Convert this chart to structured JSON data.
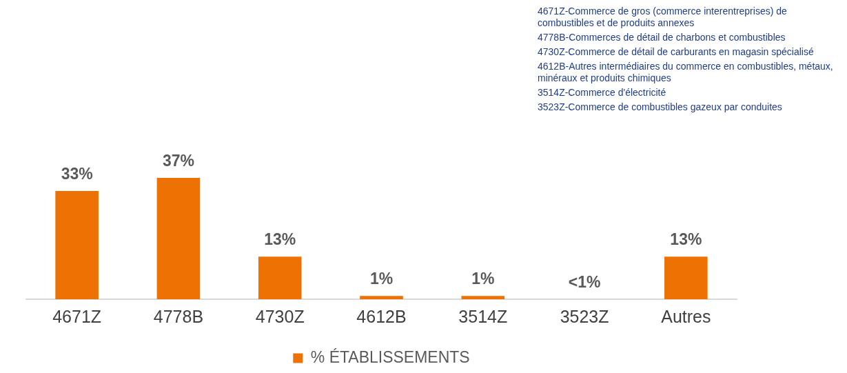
{
  "chart_data": {
    "type": "bar",
    "categories": [
      "4671Z",
      "4778B",
      "4730Z",
      "4612B",
      "3514Z",
      "3523Z",
      "Autres"
    ],
    "series": [
      {
        "name": "% ÉTABLISSEMENTS",
        "color": "#ed7203",
        "values": [
          33,
          37,
          13,
          1,
          1,
          0,
          13
        ],
        "value_labels": [
          "33%",
          "37%",
          "13%",
          "1%",
          "1%",
          "<1%",
          "13%"
        ]
      }
    ],
    "legend": "bottom",
    "grid": false,
    "annotations": [
      "4671Z-Commerce de gros (commerce interentreprises) de combustibles et de produits annexes",
      "4778B-Commerces de détail de charbons et combustibles",
      "4730Z-Commerce de détail de carburants en magasin spécialisé",
      "4612B-Autres intermédiaires du commerce en combustibles, métaux, minéraux et produits chimiques",
      "3514Z-Commerce d'électricité",
      "3523Z-Commerce de combustibles gazeux par conduites"
    ]
  }
}
